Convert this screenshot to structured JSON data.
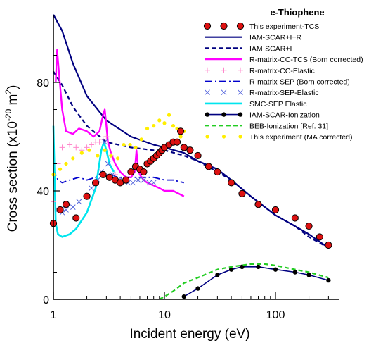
{
  "chart_data": {
    "type": "line",
    "title": "e-Thiophene",
    "xlabel": "Incident energy (eV)",
    "ylabel": "Cross section (x10",
    "ylabel_exp": "-20",
    "ylabel_unit": " m",
    "ylabel_exp2": "2",
    "ylabel_close": ")",
    "x_scale": "log",
    "xlim": [
      1,
      330
    ],
    "ylim": [
      0,
      105
    ],
    "x_ticks": [
      {
        "v": 1,
        "label": "1"
      },
      {
        "v": 10,
        "label": "10"
      },
      {
        "v": 100,
        "label": "100"
      }
    ],
    "y_ticks": [
      {
        "v": 0,
        "label": "0"
      },
      {
        "v": 40,
        "label": "40"
      },
      {
        "v": 80,
        "label": "80"
      }
    ],
    "legend_position": "top-right",
    "series": [
      {
        "name": "This experiment-TCS",
        "color": "#cc0000",
        "style": "circle-red",
        "x": [
          1,
          1.15,
          1.3,
          1.6,
          2.0,
          2.4,
          2.8,
          3.2,
          3.6,
          4.0,
          4.5,
          5.0,
          5.5,
          6.0,
          6.5,
          7.0,
          7.5,
          8.0,
          8.5,
          9.0,
          9.5,
          10,
          11,
          12,
          13,
          14,
          15,
          17,
          20,
          25,
          30,
          40,
          50,
          70,
          100,
          150,
          200,
          250,
          300
        ],
        "y": [
          28,
          33,
          35,
          30,
          38,
          43,
          46,
          45,
          44,
          43,
          44,
          47,
          49,
          48,
          47,
          50,
          51,
          52,
          53,
          54,
          55,
          56,
          57,
          58,
          58,
          62,
          56,
          55,
          53,
          49,
          47,
          43,
          39,
          35,
          33,
          30,
          27,
          23,
          20
        ]
      },
      {
        "name": "IAM-SCAR+I+R",
        "color": "#000080",
        "style": "solid",
        "x": [
          1,
          1.2,
          1.5,
          2,
          3,
          5,
          8,
          10,
          15,
          20,
          30,
          40,
          60,
          100,
          150,
          200,
          300
        ],
        "y": [
          105,
          99,
          87,
          75,
          66,
          60,
          57,
          56,
          54,
          51,
          48,
          44,
          38,
          31,
          27,
          24,
          19
        ]
      },
      {
        "name": "IAM-SCAR+I",
        "color": "#000080",
        "style": "dash",
        "x": [
          1,
          1.2,
          1.5,
          2,
          3,
          5,
          8,
          10,
          15,
          20,
          30,
          40,
          60,
          100,
          150,
          200,
          300
        ],
        "y": [
          84,
          79,
          71,
          64,
          58,
          56,
          55,
          55,
          53,
          51,
          47,
          44,
          38,
          31,
          27,
          23,
          19
        ]
      },
      {
        "name": "R-matrix-CC-TCS (Born corrected)",
        "color": "#ff00ff",
        "style": "solid-magenta",
        "x": [
          1.05,
          1.08,
          1.12,
          1.2,
          1.3,
          1.5,
          1.7,
          2.0,
          2.3,
          2.6,
          2.8,
          2.9,
          3.0,
          3.1,
          3.3,
          3.6,
          4.0,
          4.5,
          5.0,
          5.4,
          5.6,
          5.8,
          6.0,
          6.5,
          7.0,
          8.0,
          9.0,
          10,
          12,
          15
        ],
        "y": [
          80,
          92,
          84,
          70,
          62,
          61,
          63,
          62,
          60,
          62,
          68,
          70,
          64,
          58,
          54,
          50,
          47,
          45,
          45,
          47,
          55,
          48,
          46,
          44,
          43,
          42,
          41,
          40,
          40,
          38
        ]
      },
      {
        "name": "R-matrix-CC-Elastic",
        "color": "#ff88cc",
        "style": "plus",
        "x": [
          1.0,
          1.1,
          1.2,
          1.4,
          1.6,
          1.8,
          2.0,
          2.2,
          2.4,
          2.6,
          2.8,
          3.0,
          3.3,
          3.6,
          4.0
        ],
        "y": [
          36,
          50,
          56,
          57,
          56,
          55,
          56,
          57,
          58,
          58,
          59,
          60,
          53,
          46,
          44
        ]
      },
      {
        "name": "R-matrix-SEP (Born corrected)",
        "color": "#0000cc",
        "style": "dashdot",
        "x": [
          1.0,
          1.1,
          1.2,
          1.4,
          1.7,
          2.0,
          2.4,
          2.8,
          3.0,
          3.3,
          3.8,
          4.5,
          5.5,
          6.5,
          8.0,
          10,
          12,
          15
        ],
        "y": [
          48,
          44,
          43,
          44,
          45,
          44,
          45,
          47,
          46,
          46,
          45,
          45,
          45,
          45,
          45,
          44,
          44,
          43
        ]
      },
      {
        "name": "R-matrix-SEP-Elastic",
        "color": "#5566dd",
        "style": "cross",
        "x": [
          1.1,
          1.2,
          1.3,
          1.5,
          1.7,
          2.0,
          2.2,
          2.5,
          2.7,
          2.9,
          3.1,
          3.4,
          3.8,
          4.2,
          4.7,
          5.2,
          5.8,
          6.5,
          7.3,
          8.0
        ],
        "y": [
          33,
          32,
          33,
          34,
          36,
          38,
          41,
          44,
          47,
          58,
          50,
          46,
          44,
          44,
          43,
          43,
          44,
          44,
          43,
          43
        ]
      },
      {
        "name": "SMC-SEP Elastic",
        "color": "#00e5ee",
        "style": "solid-cyan",
        "x": [
          1.0,
          1.05,
          1.1,
          1.2,
          1.4,
          1.6,
          2.0,
          2.4,
          2.7,
          2.85,
          3.0,
          3.2,
          3.5
        ],
        "y": [
          64,
          28,
          24,
          23,
          24,
          26,
          32,
          41,
          55,
          58,
          55,
          50,
          47
        ]
      },
      {
        "name": "IAM-SCAR-Ionization",
        "color": "#000080",
        "style": "solid-dot",
        "x": [
          15,
          20,
          30,
          40,
          50,
          70,
          100,
          150,
          200,
          300
        ],
        "y": [
          1,
          4,
          9,
          11,
          12,
          12,
          11,
          10,
          9,
          7
        ]
      },
      {
        "name": "BEB-Ionization [Ref. 31]",
        "color": "#22cc22",
        "style": "dash-green",
        "x": [
          9,
          10,
          12,
          15,
          20,
          30,
          40,
          60,
          80,
          100,
          150,
          200,
          300
        ],
        "y": [
          0,
          1,
          3,
          6,
          8,
          11,
          12,
          13,
          13,
          12.5,
          11,
          10,
          8
        ]
      },
      {
        "name": "This experiment (MA corrected)",
        "color": "#ffee00",
        "style": "dot-yellow",
        "x": [
          1.0,
          1.15,
          1.3,
          1.5,
          1.8,
          2.1,
          2.5,
          2.9,
          3.3,
          3.8,
          4.3,
          4.9,
          5.5,
          6.2,
          7.0,
          8.0,
          9.0,
          10,
          11,
          12,
          13,
          14,
          15
        ],
        "y": [
          46,
          48,
          50,
          52,
          54,
          55,
          53,
          55,
          53,
          52,
          57,
          57,
          56,
          59,
          63,
          64,
          66,
          65,
          68,
          64,
          63,
          60,
          62
        ]
      }
    ]
  }
}
